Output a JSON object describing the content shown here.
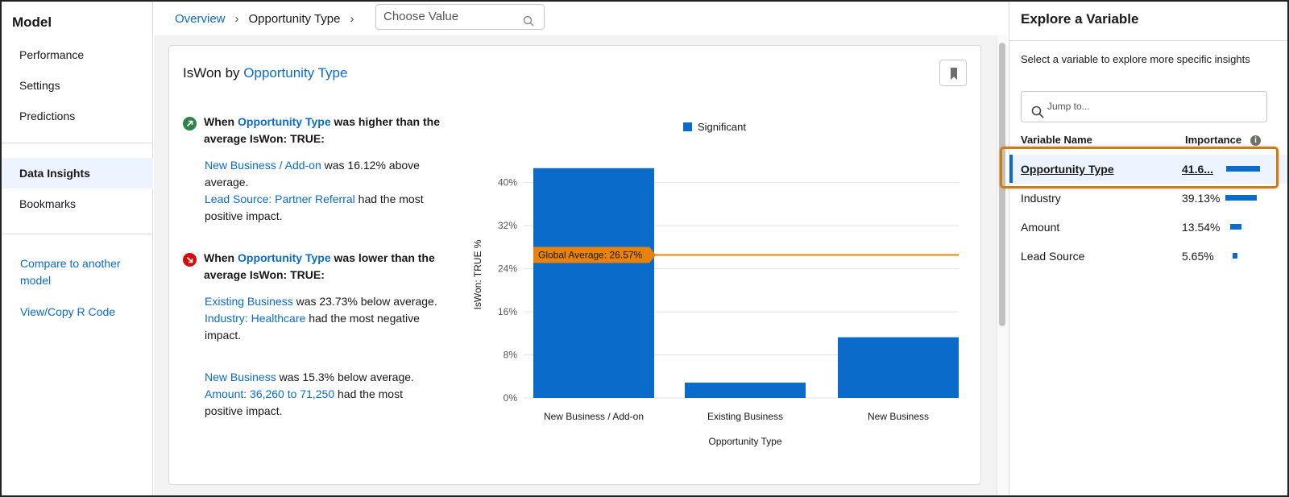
{
  "leftnav": {
    "title": "Model",
    "items": [
      {
        "label": "Performance"
      },
      {
        "label": "Settings"
      },
      {
        "label": "Predictions"
      },
      {
        "label": "Data Insights"
      },
      {
        "label": "Bookmarks"
      }
    ],
    "links": [
      {
        "label": "Compare to another model"
      },
      {
        "label": "View/Copy R Code"
      }
    ]
  },
  "breadcrumb": {
    "root": "Overview",
    "current": "Opportunity Type",
    "choose_placeholder": "Choose Value"
  },
  "card": {
    "title_prefix": "IsWon by",
    "title_link": "Opportunity Type",
    "higher": {
      "head_1": "When",
      "head_link": "Opportunity Type",
      "head_2": "was higher than the average IsWon: TRUE:",
      "p1_link": "New Business / Add-on",
      "p1_text": "was 16.12% above average.",
      "p2_link": "Lead Source: Partner Referral",
      "p2_text": "had the most positive impact."
    },
    "lower": {
      "head_1": "When",
      "head_link": "Opportunity Type",
      "head_2": "was lower than the average IsWon: TRUE:",
      "p1_link": "Existing Business",
      "p1_text": "was 23.73% below average.",
      "p2_link": "Industry: Healthcare",
      "p2_text": "had the most negative impact.",
      "p3_link": "New Business",
      "p3_text": "was 15.3% below average.",
      "p4_link": "Amount: 36,260 to 71,250",
      "p4_text": "had the most positive impact."
    }
  },
  "chart_data": {
    "type": "bar",
    "categories": [
      "New Business / Add-on",
      "Existing Business",
      "New Business"
    ],
    "values": [
      42.69,
      2.84,
      11.27
    ],
    "series": [
      {
        "name": "Significant",
        "values": [
          42.69,
          2.84,
          11.27
        ]
      }
    ],
    "xlabel": "Opportunity Type",
    "ylabel": "IsWon: TRUE %",
    "yticks": [
      "0%",
      "8%",
      "16%",
      "24%",
      "32%",
      "40%"
    ],
    "ylim": [
      0,
      44
    ],
    "reference_line": {
      "label": "Global Average: 26.57%",
      "value": 26.57
    },
    "legend": "top",
    "grid": true,
    "bar_color": "#0b6bcb",
    "reference_color": "#e8820c"
  },
  "right": {
    "title": "Explore a Variable",
    "desc": "Select a variable to explore more specific insights",
    "jump_placeholder": "Jump to...",
    "col_name": "Variable Name",
    "col_importance": "Importance",
    "variables": [
      {
        "name": "Opportunity Type",
        "value": "41.6...",
        "importance": 41.68
      },
      {
        "name": "Industry",
        "value": "39.13%",
        "importance": 39.13
      },
      {
        "name": "Amount",
        "value": "13.54%",
        "importance": 13.54
      },
      {
        "name": "Lead Source",
        "value": "5.65%",
        "importance": 5.65
      }
    ]
  },
  "colors": {
    "link": "#0b6bcb",
    "highlight": "#c97d17",
    "up": "#2e844a",
    "down": "#d80b0b"
  }
}
